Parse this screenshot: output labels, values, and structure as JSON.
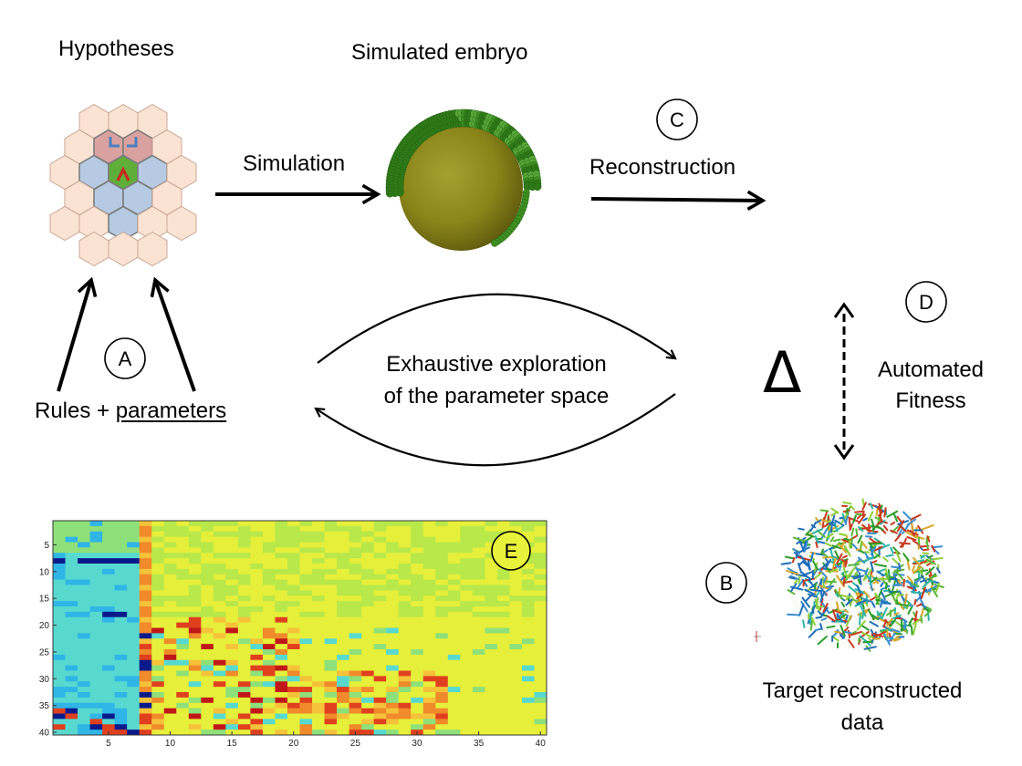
{
  "labels": {
    "hypotheses": "Hypotheses",
    "simulated_embryo": "Simulated embryo",
    "simulation": "Simulation",
    "reconstruction": "Reconstruction",
    "rules": "Rules +",
    "parameters": "parameters",
    "exploration_line1": "Exhaustive exploration",
    "exploration_line2": "of the parameter space",
    "delta": "Δ",
    "fitness_line1": "Automated",
    "fitness_line2": "Fitness",
    "target_line1": "Target reconstructed",
    "target_line2": "data"
  },
  "markers": {
    "a": "A",
    "b": "B",
    "c": "C",
    "d": "D",
    "e": "E"
  },
  "heatmap": {
    "y_ticks": [
      "5",
      "10",
      "15",
      "20",
      "25",
      "30",
      "35",
      "40"
    ],
    "x_ticks": [
      "5",
      "10",
      "15",
      "20",
      "25",
      "30",
      "35",
      "40"
    ]
  },
  "colors": {
    "hex_peach": "#fbe3d3",
    "hex_rose": "#d9a2a0",
    "hex_blue": "#b6cbe3",
    "hex_green": "#5fae3a",
    "embryo_yolk": "#8f8a1e",
    "embryo_cells": "#3d8f22"
  }
}
